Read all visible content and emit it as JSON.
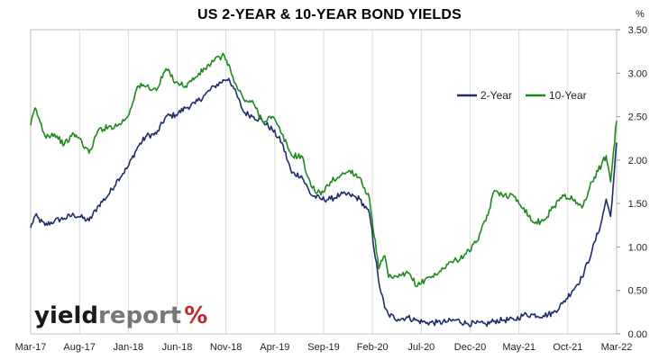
{
  "chart_data": {
    "type": "line",
    "title": "US 2-YEAR & 10-YEAR BOND YIELDS",
    "unit": "%",
    "ylim": [
      0,
      3.5
    ],
    "yticks": [
      "0.00",
      "0.50",
      "1.00",
      "1.50",
      "2.00",
      "2.50",
      "3.00",
      "3.50"
    ],
    "xticks": [
      "Mar-17",
      "Aug-17",
      "Jan-18",
      "Jun-18",
      "Nov-18",
      "Apr-19",
      "Sep-19",
      "Feb-20",
      "Jul-20",
      "Dec-20",
      "May-21",
      "Oct-21",
      "Mar-22"
    ],
    "xlim": [
      "2017-03-01",
      "2022-03-20"
    ],
    "grid": "vertical",
    "legend": "upper-right",
    "series": [
      {
        "name": "2-Year",
        "color": "#1f2d6b",
        "points": [
          [
            "2017-03-01",
            1.22
          ],
          [
            "2017-03-15",
            1.36
          ],
          [
            "2017-04-15",
            1.25
          ],
          [
            "2017-05-15",
            1.3
          ],
          [
            "2017-06-15",
            1.33
          ],
          [
            "2017-07-15",
            1.37
          ],
          [
            "2017-08-01",
            1.35
          ],
          [
            "2017-09-01",
            1.3
          ],
          [
            "2017-10-01",
            1.48
          ],
          [
            "2017-11-01",
            1.6
          ],
          [
            "2017-12-01",
            1.78
          ],
          [
            "2018-01-01",
            1.92
          ],
          [
            "2018-02-01",
            2.15
          ],
          [
            "2018-03-01",
            2.28
          ],
          [
            "2018-04-01",
            2.3
          ],
          [
            "2018-05-01",
            2.5
          ],
          [
            "2018-06-01",
            2.52
          ],
          [
            "2018-07-01",
            2.6
          ],
          [
            "2018-08-01",
            2.65
          ],
          [
            "2018-09-01",
            2.75
          ],
          [
            "2018-10-01",
            2.85
          ],
          [
            "2018-11-01",
            2.92
          ],
          [
            "2018-11-15",
            2.94
          ],
          [
            "2018-12-01",
            2.82
          ],
          [
            "2019-01-01",
            2.55
          ],
          [
            "2019-02-01",
            2.5
          ],
          [
            "2019-03-01",
            2.45
          ],
          [
            "2019-04-01",
            2.35
          ],
          [
            "2019-05-01",
            2.2
          ],
          [
            "2019-06-01",
            1.85
          ],
          [
            "2019-07-01",
            1.82
          ],
          [
            "2019-08-01",
            1.6
          ],
          [
            "2019-09-01",
            1.55
          ],
          [
            "2019-10-01",
            1.55
          ],
          [
            "2019-11-01",
            1.6
          ],
          [
            "2019-12-01",
            1.6
          ],
          [
            "2020-01-01",
            1.55
          ],
          [
            "2020-02-01",
            1.38
          ],
          [
            "2020-03-01",
            0.6
          ],
          [
            "2020-03-20",
            0.3
          ],
          [
            "2020-04-01",
            0.22
          ],
          [
            "2020-05-01",
            0.17
          ],
          [
            "2020-06-01",
            0.19
          ],
          [
            "2020-07-01",
            0.15
          ],
          [
            "2020-08-01",
            0.13
          ],
          [
            "2020-09-01",
            0.13
          ],
          [
            "2020-10-01",
            0.14
          ],
          [
            "2020-11-01",
            0.16
          ],
          [
            "2020-12-01",
            0.12
          ],
          [
            "2021-01-01",
            0.12
          ],
          [
            "2021-02-01",
            0.11
          ],
          [
            "2021-03-01",
            0.15
          ],
          [
            "2021-04-01",
            0.16
          ],
          [
            "2021-05-01",
            0.16
          ],
          [
            "2021-06-01",
            0.22
          ],
          [
            "2021-07-01",
            0.22
          ],
          [
            "2021-08-01",
            0.21
          ],
          [
            "2021-09-01",
            0.24
          ],
          [
            "2021-10-01",
            0.35
          ],
          [
            "2021-11-01",
            0.5
          ],
          [
            "2021-12-01",
            0.65
          ],
          [
            "2022-01-01",
            0.95
          ],
          [
            "2022-02-01",
            1.3
          ],
          [
            "2022-02-15",
            1.55
          ],
          [
            "2022-03-01",
            1.35
          ],
          [
            "2022-03-10",
            1.75
          ],
          [
            "2022-03-20",
            2.2
          ]
        ]
      },
      {
        "name": "10-Year",
        "color": "#1e8a1e",
        "points": [
          [
            "2017-03-01",
            2.4
          ],
          [
            "2017-03-15",
            2.6
          ],
          [
            "2017-04-15",
            2.28
          ],
          [
            "2017-05-15",
            2.3
          ],
          [
            "2017-06-15",
            2.18
          ],
          [
            "2017-07-15",
            2.3
          ],
          [
            "2017-08-01",
            2.25
          ],
          [
            "2017-09-01",
            2.08
          ],
          [
            "2017-10-01",
            2.35
          ],
          [
            "2017-11-01",
            2.38
          ],
          [
            "2017-12-01",
            2.4
          ],
          [
            "2018-01-01",
            2.5
          ],
          [
            "2018-02-01",
            2.85
          ],
          [
            "2018-03-01",
            2.85
          ],
          [
            "2018-04-01",
            2.8
          ],
          [
            "2018-05-01",
            3.05
          ],
          [
            "2018-06-01",
            2.9
          ],
          [
            "2018-07-01",
            2.85
          ],
          [
            "2018-08-01",
            2.95
          ],
          [
            "2018-09-01",
            3.05
          ],
          [
            "2018-10-01",
            3.15
          ],
          [
            "2018-11-01",
            3.2
          ],
          [
            "2018-11-15",
            3.1
          ],
          [
            "2018-12-01",
            2.9
          ],
          [
            "2019-01-01",
            2.7
          ],
          [
            "2019-02-01",
            2.65
          ],
          [
            "2019-03-01",
            2.45
          ],
          [
            "2019-04-01",
            2.5
          ],
          [
            "2019-05-01",
            2.3
          ],
          [
            "2019-06-01",
            2.05
          ],
          [
            "2019-07-01",
            2.05
          ],
          [
            "2019-08-01",
            1.7
          ],
          [
            "2019-09-01",
            1.6
          ],
          [
            "2019-10-01",
            1.75
          ],
          [
            "2019-11-01",
            1.82
          ],
          [
            "2019-12-01",
            1.88
          ],
          [
            "2020-01-01",
            1.8
          ],
          [
            "2020-02-01",
            1.55
          ],
          [
            "2020-03-01",
            0.75
          ],
          [
            "2020-03-20",
            0.9
          ],
          [
            "2020-04-01",
            0.65
          ],
          [
            "2020-05-01",
            0.65
          ],
          [
            "2020-06-01",
            0.7
          ],
          [
            "2020-07-01",
            0.55
          ],
          [
            "2020-08-01",
            0.65
          ],
          [
            "2020-09-01",
            0.68
          ],
          [
            "2020-10-01",
            0.8
          ],
          [
            "2020-11-01",
            0.85
          ],
          [
            "2020-12-01",
            0.92
          ],
          [
            "2021-01-01",
            1.05
          ],
          [
            "2021-02-01",
            1.3
          ],
          [
            "2021-03-01",
            1.65
          ],
          [
            "2021-04-01",
            1.6
          ],
          [
            "2021-05-01",
            1.58
          ],
          [
            "2021-06-01",
            1.45
          ],
          [
            "2021-07-01",
            1.28
          ],
          [
            "2021-08-01",
            1.3
          ],
          [
            "2021-09-01",
            1.45
          ],
          [
            "2021-10-01",
            1.6
          ],
          [
            "2021-11-01",
            1.55
          ],
          [
            "2021-12-01",
            1.45
          ],
          [
            "2022-01-01",
            1.75
          ],
          [
            "2022-02-01",
            1.95
          ],
          [
            "2022-02-15",
            2.05
          ],
          [
            "2022-03-01",
            1.75
          ],
          [
            "2022-03-10",
            2.1
          ],
          [
            "2022-03-20",
            2.45
          ]
        ]
      }
    ]
  },
  "logo": {
    "part1": "yield",
    "part2": "report",
    "symbol": "%"
  }
}
